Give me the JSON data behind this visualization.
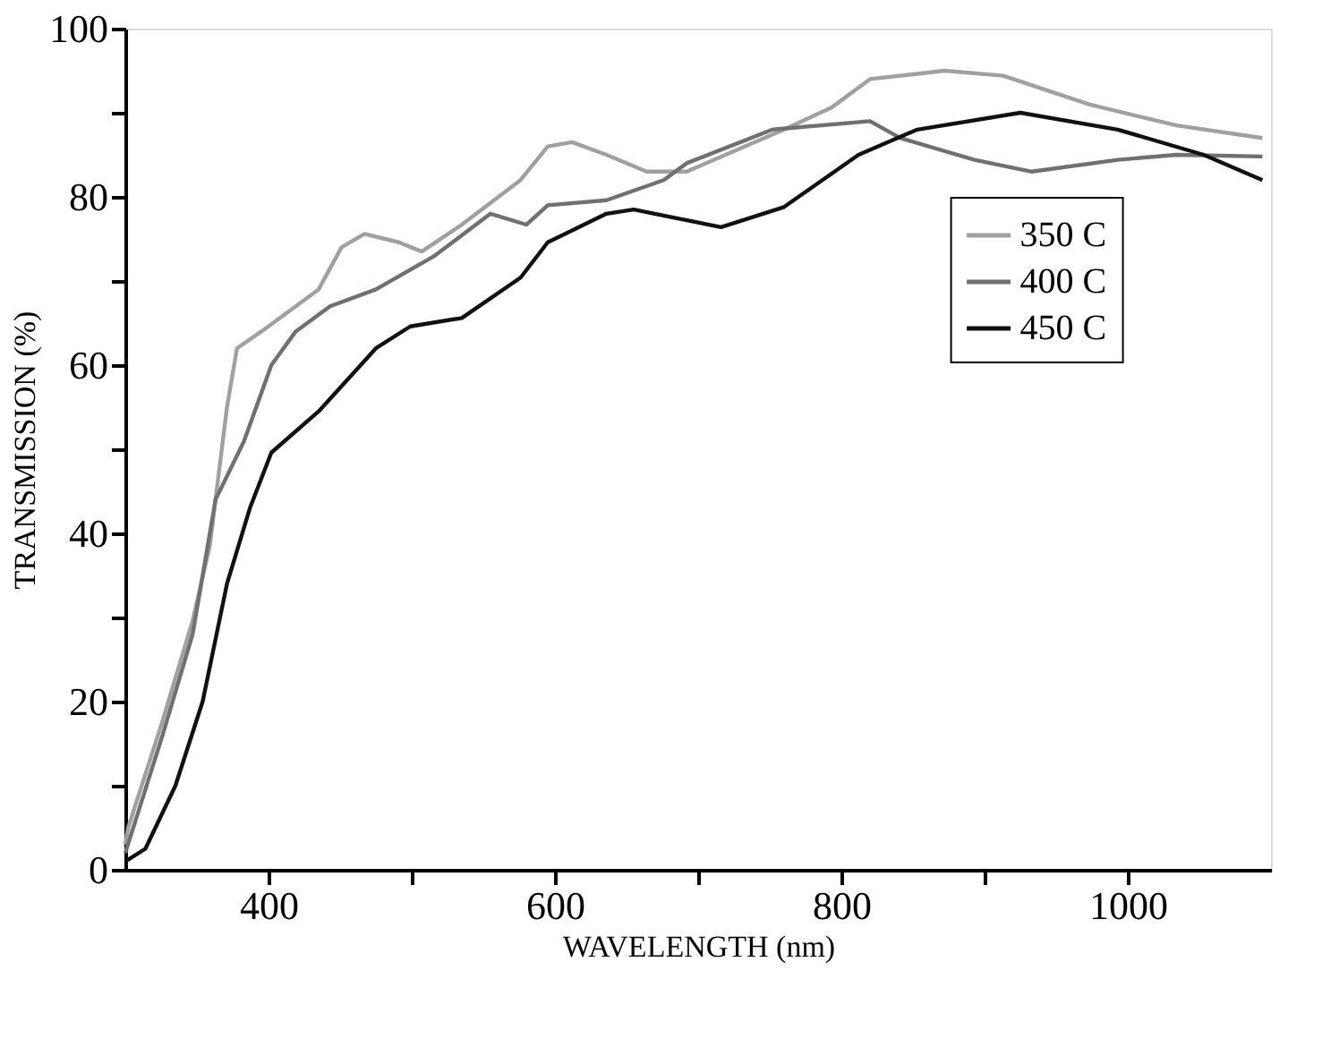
{
  "chart_data": {
    "type": "line",
    "xlabel": "WAVELENGTH (nm)",
    "ylabel": "TRANSMISSION (%)",
    "xlim": [
      300,
      1100
    ],
    "ylim": [
      0,
      100
    ],
    "xticks": [
      400,
      {
        "value": 500,
        "label": null
      },
      600,
      {
        "value": 700,
        "label": null
      },
      800,
      {
        "value": 900,
        "label": null
      },
      1000
    ],
    "yticks": [
      0,
      {
        "value": 10,
        "label": null
      },
      20,
      {
        "value": 30,
        "label": null
      },
      40,
      {
        "value": 50,
        "label": null
      },
      60,
      {
        "value": 70,
        "label": null
      },
      80,
      {
        "value": 90,
        "label": null
      },
      100
    ],
    "grid": false,
    "legend": "top right",
    "marker": "none",
    "line_style": "solid",
    "series": [
      {
        "name": "350 C",
        "color": "#a0a0a0",
        "x": [
          300,
          302,
          326,
          347,
          359,
          371,
          378,
          395,
          435,
          451,
          467,
          491,
          507,
          535,
          576,
          595,
          612,
          636,
          664,
          692,
          760,
          793,
          820,
          872,
          913,
          973,
          1034,
          1094
        ],
        "values": [
          3,
          5,
          17.7,
          29.6,
          38.5,
          55,
          62,
          64,
          69,
          74,
          75.6,
          74.6,
          73.5,
          76.7,
          82,
          86,
          86.5,
          85,
          83,
          83,
          88,
          90.6,
          94,
          95,
          94.4,
          91,
          88.5,
          87
        ]
      },
      {
        "name": "400 C",
        "color": "#707070",
        "x": [
          300,
          326,
          347,
          363,
          383,
          402,
          419,
          443,
          475,
          516,
          555,
          580,
          595,
          636,
          676,
          692,
          752,
          820,
          841,
          893,
          933,
          993,
          1034,
          1094
        ],
        "values": [
          2,
          16,
          28,
          44,
          51,
          60,
          64,
          67,
          69,
          73,
          78,
          76.7,
          79,
          79.6,
          82,
          84,
          88,
          89,
          87,
          84.4,
          83,
          84.4,
          85,
          84.8
        ]
      },
      {
        "name": "450 C",
        "color": "#111111",
        "x": [
          300,
          314,
          335,
          354,
          371,
          387,
          402,
          435,
          475,
          499,
          535,
          576,
          595,
          636,
          655,
          716,
          760,
          812,
          853,
          925,
          993,
          1053,
          1094
        ],
        "values": [
          1,
          2.5,
          10,
          20,
          34,
          43,
          49.6,
          54.5,
          62,
          64.6,
          65.6,
          70.4,
          74.6,
          78,
          78.5,
          76.4,
          78.8,
          85,
          88,
          90,
          88,
          85,
          82
        ]
      }
    ]
  }
}
